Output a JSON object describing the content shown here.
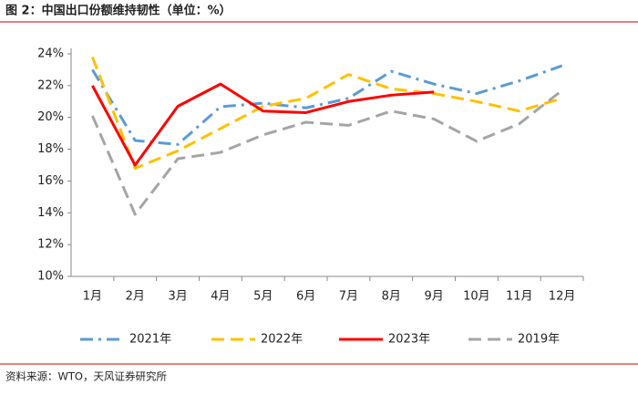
{
  "chart_data": {
    "type": "line",
    "title": "图 2：中国出口份额维持韧性（单位：%）",
    "source": "资料来源：WTO，天风证券研究所",
    "categories": [
      "1月",
      "2月",
      "3月",
      "4月",
      "5月",
      "6月",
      "7月",
      "8月",
      "9月",
      "10月",
      "11月",
      "12月"
    ],
    "series": [
      {
        "name": "2021年",
        "color": "#5b9bd5",
        "style": "dashdot",
        "values": [
          23.0,
          18.55,
          18.3,
          20.67,
          20.9,
          20.6,
          21.2,
          22.9,
          22.1,
          21.5,
          22.3,
          23.25
        ]
      },
      {
        "name": "2022年",
        "color": "#ffc000",
        "style": "dashed",
        "values": [
          23.8,
          16.8,
          17.9,
          19.3,
          20.7,
          21.2,
          22.7,
          21.8,
          21.5,
          21.0,
          20.4,
          21.2
        ]
      },
      {
        "name": "2023年",
        "color": "#ff0000",
        "style": "solid",
        "values": [
          22.0,
          17.0,
          20.7,
          22.1,
          20.4,
          20.3,
          21.0,
          21.4,
          21.6,
          null,
          null,
          null
        ]
      },
      {
        "name": "2019年",
        "color": "#a5a5a5",
        "style": "dashed",
        "values": [
          20.1,
          13.9,
          17.4,
          17.8,
          18.9,
          19.7,
          19.5,
          20.4,
          19.9,
          18.5,
          19.6,
          21.7
        ]
      }
    ],
    "ylim": [
      10,
      24
    ],
    "yticks": [
      {
        "value": 10,
        "label": "10%"
      },
      {
        "value": 12,
        "label": "12%"
      },
      {
        "value": 14,
        "label": "14%"
      },
      {
        "value": 16,
        "label": "16%"
      },
      {
        "value": 18,
        "label": "18%"
      },
      {
        "value": 20,
        "label": "20%"
      },
      {
        "value": 22,
        "label": "22%"
      },
      {
        "value": 24,
        "label": "24%"
      }
    ],
    "grid": false,
    "legend": "bottom"
  }
}
